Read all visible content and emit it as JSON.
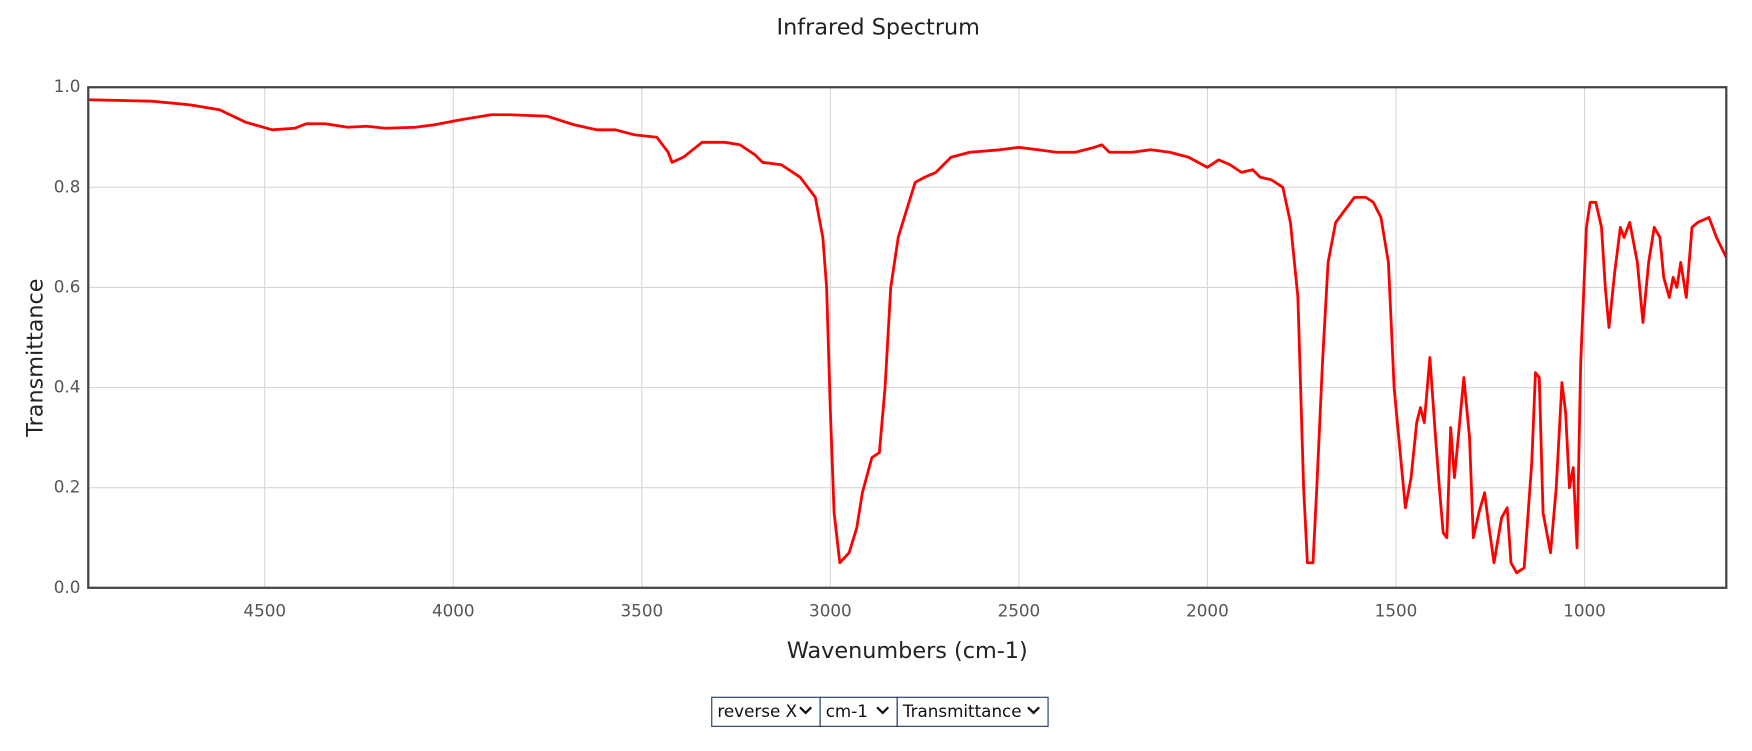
{
  "chart_data": {
    "type": "line",
    "title": "Infrared Spectrum",
    "x_label": "Wavenumbers (cm-1)",
    "y_label": "Transmittance",
    "color": "#ff0000",
    "grid": true,
    "x_reversed": true,
    "xlim": [
      4968,
      624
    ],
    "ylim": [
      0,
      1
    ],
    "xticks": [
      4500,
      4000,
      3500,
      3000,
      2500,
      2000,
      1500,
      1000
    ],
    "yticks": [
      {
        "value": 0,
        "label": "0.0"
      },
      0.2,
      0.4,
      0.6,
      0.8,
      {
        "value": 1,
        "label": "1.0"
      }
    ],
    "x": [
      4968,
      4800,
      4700,
      4620,
      4550,
      4480,
      4420,
      4390,
      4340,
      4280,
      4230,
      4180,
      4100,
      4050,
      3980,
      3900,
      3850,
      3750,
      3680,
      3620,
      3570,
      3520,
      3460,
      3430,
      3420,
      3390,
      3340,
      3280,
      3240,
      3200,
      3180,
      3130,
      3080,
      3040,
      3020,
      3010,
      3000,
      2990,
      2975,
      2950,
      2930,
      2915,
      2890,
      2870,
      2855,
      2840,
      2820,
      2800,
      2775,
      2750,
      2720,
      2680,
      2630,
      2550,
      2500,
      2450,
      2400,
      2350,
      2300,
      2280,
      2260,
      2200,
      2150,
      2100,
      2050,
      2000,
      1970,
      1940,
      1910,
      1880,
      1860,
      1830,
      1800,
      1780,
      1760,
      1745,
      1735,
      1720,
      1710,
      1695,
      1680,
      1660,
      1640,
      1610,
      1580,
      1560,
      1540,
      1520,
      1505,
      1490,
      1475,
      1460,
      1445,
      1435,
      1425,
      1410,
      1395,
      1385,
      1375,
      1365,
      1355,
      1345,
      1335,
      1320,
      1305,
      1295,
      1280,
      1265,
      1255,
      1240,
      1220,
      1205,
      1195,
      1180,
      1160,
      1140,
      1130,
      1120,
      1110,
      1090,
      1075,
      1060,
      1050,
      1040,
      1030,
      1020,
      1010,
      995,
      985,
      970,
      955,
      945,
      935,
      920,
      905,
      895,
      880,
      860,
      845,
      830,
      815,
      800,
      790,
      775,
      765,
      755,
      745,
      730,
      715,
      700,
      670,
      650,
      624
    ],
    "values": [
      0.975,
      0.972,
      0.965,
      0.955,
      0.93,
      0.915,
      0.918,
      0.927,
      0.927,
      0.92,
      0.922,
      0.918,
      0.92,
      0.925,
      0.935,
      0.945,
      0.945,
      0.942,
      0.925,
      0.915,
      0.915,
      0.905,
      0.9,
      0.87,
      0.85,
      0.86,
      0.89,
      0.89,
      0.885,
      0.865,
      0.85,
      0.845,
      0.82,
      0.78,
      0.7,
      0.6,
      0.35,
      0.15,
      0.05,
      0.07,
      0.12,
      0.19,
      0.26,
      0.27,
      0.4,
      0.6,
      0.7,
      0.75,
      0.81,
      0.82,
      0.83,
      0.86,
      0.87,
      0.875,
      0.88,
      0.875,
      0.87,
      0.87,
      0.88,
      0.885,
      0.87,
      0.87,
      0.875,
      0.87,
      0.86,
      0.84,
      0.855,
      0.845,
      0.83,
      0.835,
      0.82,
      0.815,
      0.8,
      0.73,
      0.58,
      0.2,
      0.05,
      0.05,
      0.2,
      0.45,
      0.65,
      0.73,
      0.75,
      0.78,
      0.78,
      0.77,
      0.74,
      0.65,
      0.4,
      0.28,
      0.16,
      0.22,
      0.33,
      0.36,
      0.33,
      0.46,
      0.3,
      0.2,
      0.11,
      0.1,
      0.32,
      0.22,
      0.3,
      0.42,
      0.3,
      0.1,
      0.15,
      0.19,
      0.13,
      0.05,
      0.14,
      0.16,
      0.05,
      0.03,
      0.04,
      0.25,
      0.43,
      0.42,
      0.15,
      0.07,
      0.2,
      0.41,
      0.35,
      0.2,
      0.24,
      0.08,
      0.45,
      0.72,
      0.77,
      0.77,
      0.72,
      0.6,
      0.52,
      0.63,
      0.72,
      0.7,
      0.73,
      0.65,
      0.53,
      0.65,
      0.72,
      0.7,
      0.62,
      0.58,
      0.62,
      0.6,
      0.65,
      0.58,
      0.72,
      0.73,
      0.74,
      0.7,
      0.66
    ]
  },
  "controls": [
    "reverse X",
    "cm-1",
    "Transmittance"
  ]
}
